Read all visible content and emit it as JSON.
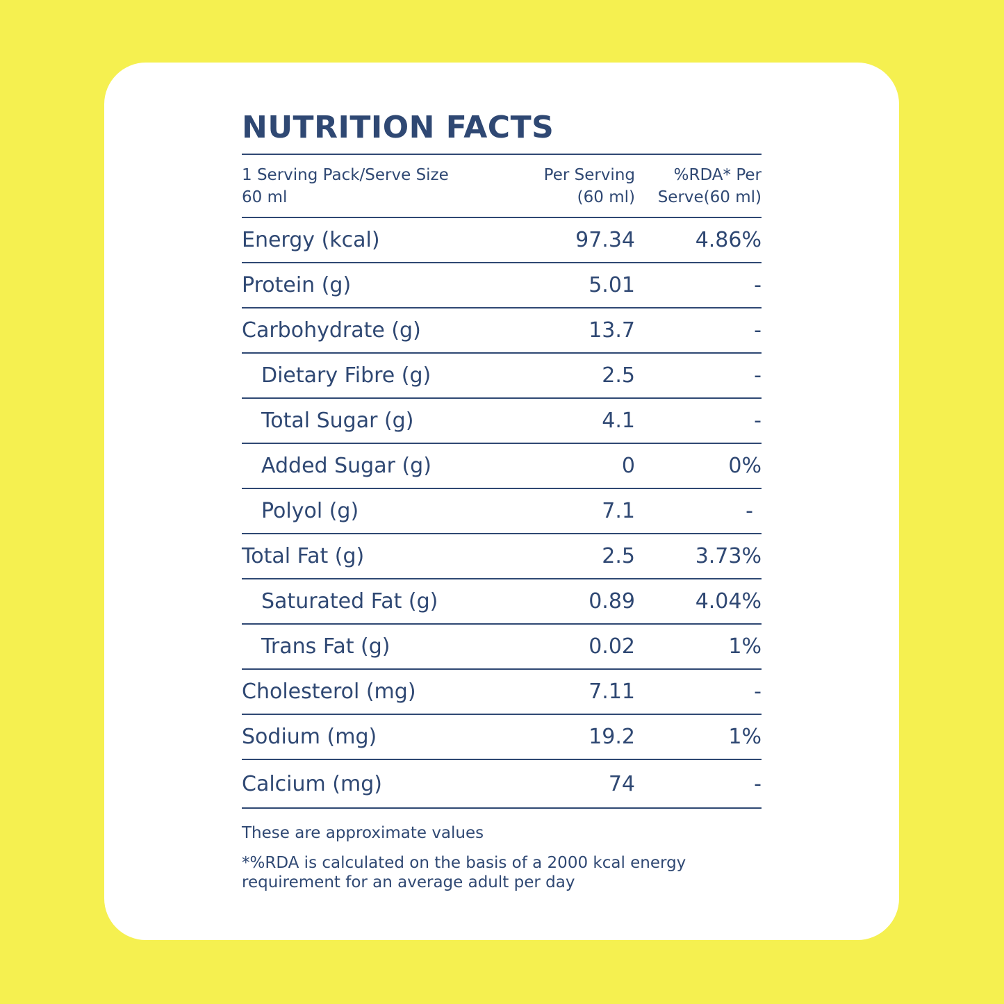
{
  "title": "NUTRITION FACTS",
  "header": {
    "col1_line1": "1 Serving Pack/Serve Size",
    "col1_line2": "60 ml",
    "col2_line1": "Per Serving",
    "col2_line2": "(60 ml)",
    "col3_line1": "%RDA* Per",
    "col3_line2": "Serve(60 ml)"
  },
  "rows": [
    {
      "name": "Energy (kcal)",
      "per_serving": "97.34",
      "rda": "4.86%"
    },
    {
      "name": "Protein (g)",
      "per_serving": "5.01",
      "rda": "-"
    },
    {
      "name": "Carbohydrate (g)",
      "per_serving": "13.7",
      "rda": "-"
    },
    {
      "name": "Dietary Fibre (g)",
      "per_serving": "2.5",
      "rda": "-"
    },
    {
      "name": "Total Sugar (g)",
      "per_serving": "4.1",
      "rda": "-"
    },
    {
      "name": "Added Sugar (g)",
      "per_serving": "0",
      "rda": "0%"
    },
    {
      "name": "Polyol (g)",
      "per_serving": "7.1",
      "rda": "-"
    },
    {
      "name": "Total Fat (g)",
      "per_serving": "2.5",
      "rda": "3.73%"
    },
    {
      "name": "Saturated Fat (g)",
      "per_serving": "0.89",
      "rda": "4.04%"
    },
    {
      "name": "Trans Fat (g)",
      "per_serving": "0.02",
      "rda": "1%"
    },
    {
      "name": "Cholesterol (mg)",
      "per_serving": "7.11",
      "rda": "-"
    },
    {
      "name": "Sodium (mg)",
      "per_serving": "19.2",
      "rda": "1%"
    },
    {
      "name": "Calcium (mg)",
      "per_serving": "74",
      "rda": "-"
    }
  ],
  "notes": {
    "approx": "These are approximate values",
    "rda_line1": "*%RDA is calculated on the basis of a 2000 kcal energy",
    "rda_line2": "requirement for an average adult per day"
  },
  "colors": {
    "background": "#f5f050",
    "card": "#ffffff",
    "text": "#2f4873"
  }
}
